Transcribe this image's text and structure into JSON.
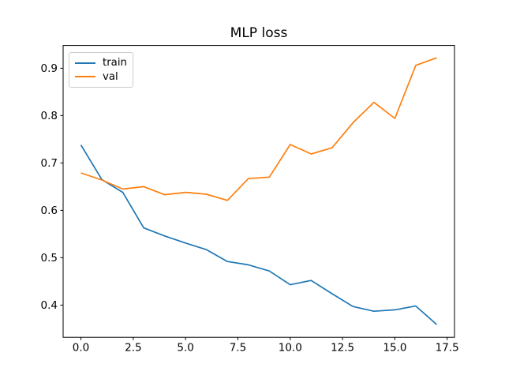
{
  "chart_data": {
    "type": "line",
    "title": "MLP loss",
    "xlabel": "",
    "ylabel": "",
    "x": [
      0,
      1,
      2,
      3,
      4,
      5,
      6,
      7,
      8,
      9,
      10,
      11,
      12,
      13,
      14,
      15,
      16,
      17
    ],
    "series": [
      {
        "name": "train",
        "color": "#1f77b4",
        "values": [
          0.738,
          0.665,
          0.638,
          0.563,
          0.546,
          0.531,
          0.517,
          0.492,
          0.485,
          0.472,
          0.443,
          0.452,
          0.424,
          0.397,
          0.387,
          0.39,
          0.398,
          0.359
        ]
      },
      {
        "name": "val",
        "color": "#ff7f0e",
        "values": [
          0.679,
          0.664,
          0.645,
          0.65,
          0.633,
          0.638,
          0.634,
          0.621,
          0.667,
          0.67,
          0.739,
          0.719,
          0.732,
          0.785,
          0.828,
          0.794,
          0.906,
          0.922
        ]
      }
    ],
    "xlim": [
      -0.85,
      17.85
    ],
    "ylim": [
      0.332,
      0.948
    ],
    "x_ticks": [
      {
        "value": 0.0,
        "label": "0.0"
      },
      {
        "value": 2.5,
        "label": "2.5"
      },
      {
        "value": 5.0,
        "label": "5.0"
      },
      {
        "value": 7.5,
        "label": "7.5"
      },
      {
        "value": 10.0,
        "label": "10.0"
      },
      {
        "value": 12.5,
        "label": "12.5"
      },
      {
        "value": 15.0,
        "label": "15.0"
      },
      {
        "value": 17.5,
        "label": "17.5"
      }
    ],
    "y_ticks": [
      {
        "value": 0.4,
        "label": "0.4"
      },
      {
        "value": 0.5,
        "label": "0.5"
      },
      {
        "value": 0.6,
        "label": "0.6"
      },
      {
        "value": 0.7,
        "label": "0.7"
      },
      {
        "value": 0.8,
        "label": "0.8"
      },
      {
        "value": 0.9,
        "label": "0.9"
      }
    ],
    "grid": false,
    "legend_position": "upper left",
    "frame_color": "#000000"
  }
}
